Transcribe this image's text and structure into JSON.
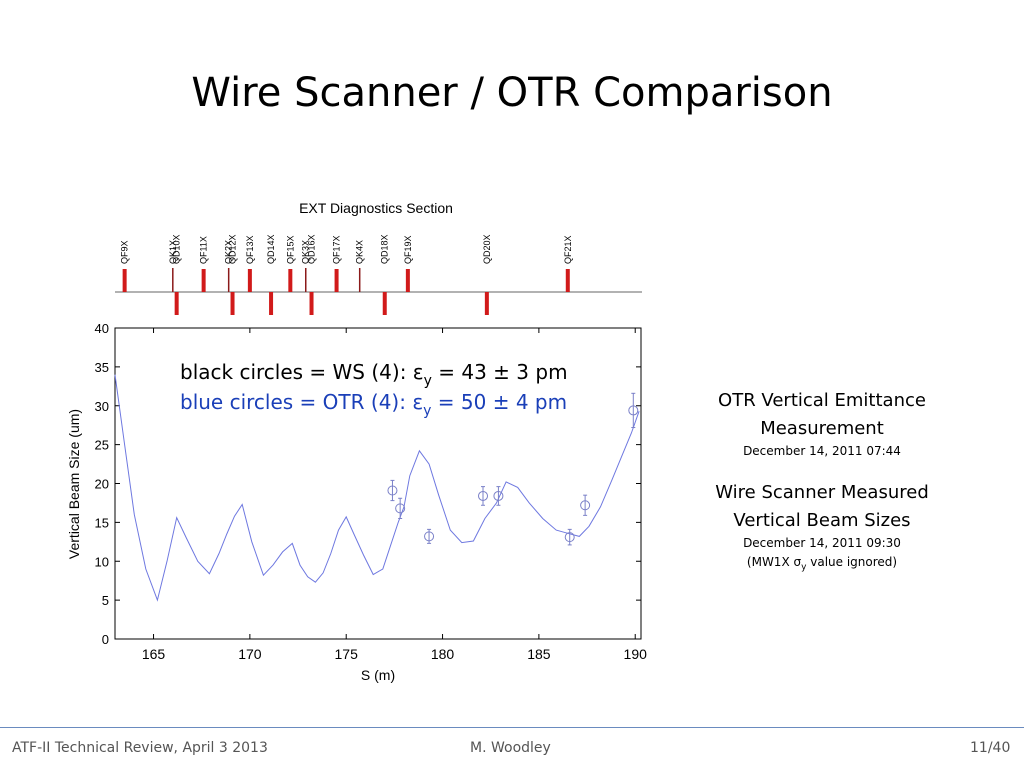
{
  "slide": {
    "title": "Wire Scanner / OTR Comparison",
    "footer_left": "ATF-II Technical Review, April 3 2013",
    "footer_center": "M. Woodley",
    "footer_right": "11/40"
  },
  "side_notes": {
    "otr_title_line1": "OTR Vertical Emittance",
    "otr_title_line2": "Measurement",
    "otr_date": "December 14, 2011 07:44",
    "ws_title_line1": "Wire Scanner Measured",
    "ws_title_line2": "Vertical Beam Sizes",
    "ws_date": "December 14, 2011 09:30",
    "ws_note_prefix": "(MW1X σ",
    "ws_note_sub": "y",
    "ws_note_suffix": " value ignored)"
  },
  "annotations": {
    "ws_prefix": "black circles = WS (4): ε",
    "ws_sub": "y",
    "ws_suffix": " = 43 ± 3 pm",
    "otr_prefix": "blue circles = OTR (4): ε",
    "otr_sub": "y",
    "otr_suffix": " = 50 ± 4 pm"
  },
  "colors": {
    "ws_text": "#000000",
    "otr_text": "#1a3fb8",
    "curve": "#6e78e0",
    "markers": "#7a80c8",
    "magnets": "#d11a1a",
    "axis": "#000000",
    "footer_rule": "#6a8bbf"
  },
  "chart_data": {
    "type": "line",
    "title": "EXT Diagnostics Section",
    "xlabel": "S (m)",
    "ylabel": "Vertical Beam Size (um)",
    "xlim": [
      163,
      190.3
    ],
    "ylim": [
      0,
      40
    ],
    "x_ticks": [
      165,
      170,
      175,
      180,
      185,
      190
    ],
    "y_ticks": [
      0,
      5,
      10,
      15,
      20,
      25,
      30,
      35,
      40
    ],
    "grid": false,
    "series": [
      {
        "kind": "line",
        "x": [
          163,
          163.5,
          164,
          164.6,
          165.2,
          165.7,
          166.2,
          166.7,
          167.3,
          167.9,
          168.4,
          168.8,
          169.2,
          169.6,
          170.1,
          170.7,
          171.2,
          171.7,
          172.2,
          172.6,
          173.0,
          173.4,
          173.8,
          174.2,
          174.6,
          175.0,
          175.4,
          175.9,
          176.4,
          176.9,
          177.3,
          177.7,
          178.0,
          178.3,
          178.8,
          179.3,
          179.8,
          180.4,
          181.0,
          181.6,
          182.2,
          182.8,
          183.3,
          183.9,
          184.5,
          185.2,
          185.9,
          186.5,
          187.1,
          187.6,
          188.2,
          188.8,
          189.3,
          189.8,
          190.2
        ],
        "y": [
          34,
          25,
          16,
          9,
          5,
          10,
          15.6,
          13,
          10,
          8.4,
          11,
          13.5,
          15.8,
          17.3,
          12.5,
          8.2,
          9.5,
          11.2,
          12.3,
          9.5,
          8.0,
          7.3,
          8.5,
          11,
          14,
          15.7,
          13.5,
          10.8,
          8.3,
          9,
          12,
          15,
          17,
          21,
          24.2,
          22.5,
          18.5,
          14,
          12.4,
          12.6,
          15.5,
          17.5,
          20.2,
          19.5,
          17.5,
          15.5,
          14,
          13.6,
          13.2,
          14.5,
          17,
          20.5,
          23.5,
          26.5,
          29.3
        ]
      },
      {
        "kind": "points",
        "x": [
          177.4,
          177.8,
          179.3,
          182.1,
          182.9,
          186.6,
          187.4,
          189.9
        ],
        "y": [
          19.1,
          16.8,
          13.2,
          18.4,
          18.4,
          13.1,
          17.2,
          29.4
        ],
        "err": [
          1.3,
          1.3,
          0.9,
          1.2,
          1.2,
          1.0,
          1.3,
          2.2
        ]
      }
    ],
    "magnets": [
      {
        "name": "QF9X",
        "s": 163.5,
        "type": "F"
      },
      {
        "name": "QK1X",
        "s": 166.0,
        "type": "K"
      },
      {
        "name": "QD10X",
        "s": 166.2,
        "type": "D"
      },
      {
        "name": "QF11X",
        "s": 167.6,
        "type": "F"
      },
      {
        "name": "QK2X",
        "s": 168.9,
        "type": "K"
      },
      {
        "name": "QD12X",
        "s": 169.1,
        "type": "D"
      },
      {
        "name": "QF13X",
        "s": 170.0,
        "type": "F"
      },
      {
        "name": "QD14X",
        "s": 171.1,
        "type": "D"
      },
      {
        "name": "QF15X",
        "s": 172.1,
        "type": "F"
      },
      {
        "name": "QK3X",
        "s": 172.9,
        "type": "K"
      },
      {
        "name": "QD16X",
        "s": 173.2,
        "type": "D"
      },
      {
        "name": "QF17X",
        "s": 174.5,
        "type": "F"
      },
      {
        "name": "QK4X",
        "s": 175.7,
        "type": "K"
      },
      {
        "name": "QD18X",
        "s": 177.0,
        "type": "D"
      },
      {
        "name": "QF19X",
        "s": 178.2,
        "type": "F"
      },
      {
        "name": "QD20X",
        "s": 182.3,
        "type": "D"
      },
      {
        "name": "QF21X",
        "s": 186.5,
        "type": "F"
      }
    ]
  }
}
